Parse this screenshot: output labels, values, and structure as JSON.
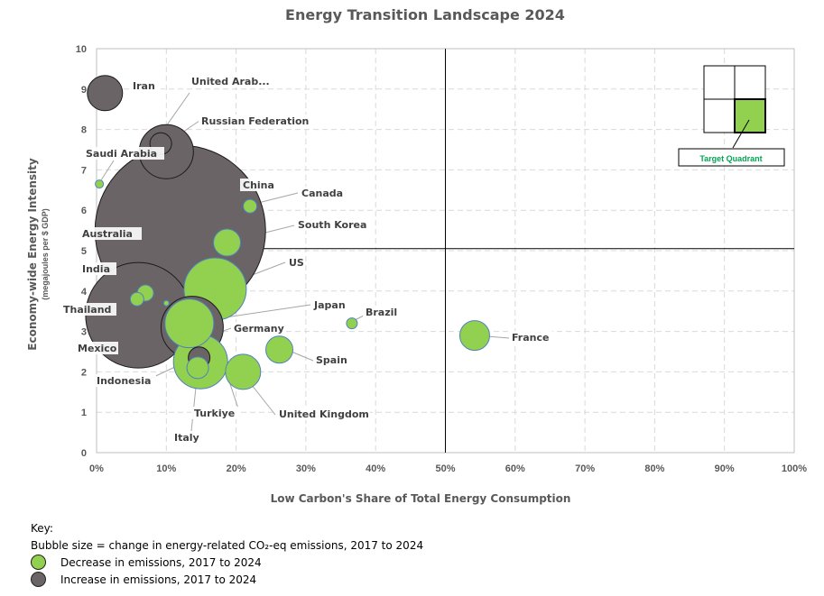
{
  "colors": {
    "decrease": "#92d050",
    "increase": "#6b6466",
    "decrease_stroke": "#4f81bd",
    "increase_stroke": "#1a1a1a",
    "grid": "#d9d9d9",
    "target_fill": "#92d050"
  },
  "chart_data": {
    "type": "bubble",
    "title": "Energy Transition Landscape 2024",
    "xlabel": "Low Carbon's Share of Total Energy Consumption",
    "ylabel": "Economy-wide Energy Intensity",
    "ylabel_sub": "(megajoules per $ GDP)",
    "xlim": [
      0,
      100
    ],
    "ylim": [
      0,
      10
    ],
    "x_ticks": [
      "0%",
      "10%",
      "20%",
      "30%",
      "40%",
      "50%",
      "60%",
      "70%",
      "80%",
      "90%",
      "100%"
    ],
    "y_ticks": [
      "0",
      "1",
      "2",
      "3",
      "4",
      "5",
      "6",
      "7",
      "8",
      "9",
      "10"
    ],
    "quadrant_divider": {
      "x": 50,
      "y": 5.05
    },
    "grid": true,
    "target_quadrant_label": "Target Quadrant",
    "points": [
      {
        "name": "Iran",
        "x": 1.2,
        "y": 8.9,
        "size": 13,
        "emissions": "increase"
      },
      {
        "name": "United Arab...",
        "x": 9.2,
        "y": 7.65,
        "size": 8,
        "emissions": "increase"
      },
      {
        "name": "Russian Federation",
        "x": 10,
        "y": 7.45,
        "size": 20,
        "emissions": "increase"
      },
      {
        "name": "Saudi Arabia",
        "x": 0.4,
        "y": 6.65,
        "size": 3,
        "emissions": "decrease"
      },
      {
        "name": "China",
        "x": 12,
        "y": 5.5,
        "size": 63,
        "emissions": "increase"
      },
      {
        "name": "Canada",
        "x": 22,
        "y": 6.1,
        "size": 5,
        "emissions": "decrease"
      },
      {
        "name": "South Korea",
        "x": 18.7,
        "y": 5.2,
        "size": 10,
        "emissions": "decrease"
      },
      {
        "name": "Australia",
        "x": 7,
        "y": 3.95,
        "size": 6,
        "emissions": "decrease"
      },
      {
        "name": "India",
        "x": 6,
        "y": 3.4,
        "size": 39,
        "emissions": "increase"
      },
      {
        "name": "US",
        "x": 17,
        "y": 4.05,
        "size": 23,
        "emissions": "decrease"
      },
      {
        "name": "Thailand",
        "x": 5.8,
        "y": 3.8,
        "size": 5,
        "emissions": "decrease"
      },
      {
        "name": "Mexico",
        "x": 10,
        "y": 3.7,
        "size": 2,
        "emissions": "decrease"
      },
      {
        "name": "Japan",
        "x": 13.7,
        "y": 3.1,
        "size": 23,
        "emissions": "increase"
      },
      {
        "name": "Germany",
        "x": 13.3,
        "y": 3.2,
        "size": 18,
        "emissions": "decrease"
      },
      {
        "name": "Indonesia",
        "x": 14.7,
        "y": 2.35,
        "size": 8,
        "emissions": "increase"
      },
      {
        "name": "Turkiye",
        "x": 14.9,
        "y": 2.25,
        "size": 20,
        "emissions": "decrease"
      },
      {
        "name": "Italy",
        "x": 14.5,
        "y": 2.1,
        "size": 8,
        "emissions": "decrease"
      },
      {
        "name": "Brazil",
        "x": 36.6,
        "y": 3.2,
        "size": 4,
        "emissions": "decrease"
      },
      {
        "name": "France",
        "x": 54.2,
        "y": 2.9,
        "size": 11,
        "emissions": "decrease"
      },
      {
        "name": "Spain",
        "x": 26.2,
        "y": 2.55,
        "size": 10,
        "emissions": "decrease"
      },
      {
        "name": "United Kingdom",
        "x": 21,
        "y": 2.0,
        "size": 13,
        "emissions": "decrease"
      }
    ]
  },
  "key": {
    "heading": "Key:",
    "size_text": "Bubble size = change in energy-related CO₂-eq emissions, 2017 to 2024",
    "decrease_label": "Decrease in emissions, 2017 to 2024",
    "increase_label": "Increase in emissions, 2017 to 2024"
  }
}
